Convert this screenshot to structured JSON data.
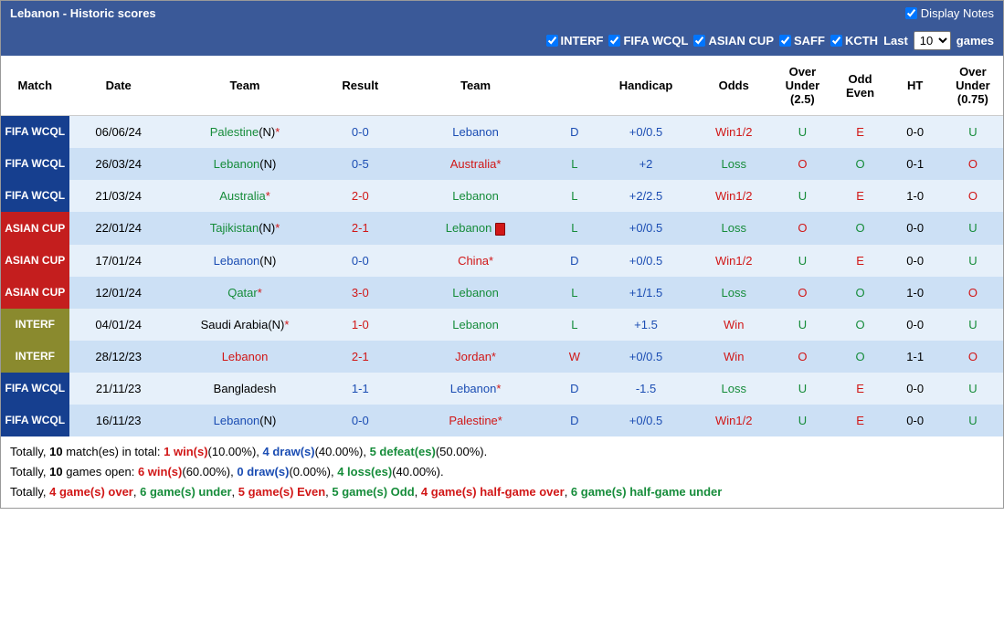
{
  "title": "Lebanon - Historic scores",
  "display_notes_label": "Display Notes",
  "filters": [
    {
      "label": "INTERF",
      "checked": true
    },
    {
      "label": "FIFA WCQL",
      "checked": true
    },
    {
      "label": "ASIAN CUP",
      "checked": true
    },
    {
      "label": "SAFF",
      "checked": true
    },
    {
      "label": "KCTH",
      "checked": true
    }
  ],
  "last_label_pre": "Last",
  "last_select": "10",
  "last_label_post": "games",
  "columns": [
    "Match",
    "Date",
    "Team",
    "Result",
    "Team",
    "",
    "Handicap",
    "Odds",
    "Over Under (2.5)",
    "Odd Even",
    "HT",
    "Over Under (0.75)"
  ],
  "rows": [
    {
      "badge": "FIFA WCQL",
      "badge_cls": "badge-fifa",
      "date": "06/06/24",
      "t1": "Palestine",
      "t1_sfx": "(N)*",
      "t1_cls": "c-green",
      "res": "0-0",
      "res_cls": "c-blue",
      "t2": "Lebanon",
      "t2_sfx": "",
      "t2_cls": "c-blue",
      "t2_card": false,
      "dl": "D",
      "dl_cls": "c-blue",
      "hcap": "+0/0.5",
      "hcap_cls": "c-blue",
      "odds": "Win1/2",
      "odds_cls": "c-red",
      "ou": "U",
      "ou_cls": "c-green",
      "oe": "E",
      "oe_cls": "c-red",
      "ht": "0-0",
      "ou2": "U",
      "ou2_cls": "c-green",
      "row_cls": "row-light"
    },
    {
      "badge": "FIFA WCQL",
      "badge_cls": "badge-fifa",
      "date": "26/03/24",
      "t1": "Lebanon",
      "t1_sfx": "(N)",
      "t1_cls": "c-green",
      "res": "0-5",
      "res_cls": "c-blue",
      "t2": "Australia",
      "t2_sfx": "*",
      "t2_cls": "c-red",
      "t2_card": false,
      "dl": "L",
      "dl_cls": "c-green",
      "hcap": "+2",
      "hcap_cls": "c-blue",
      "odds": "Loss",
      "odds_cls": "c-green",
      "ou": "O",
      "ou_cls": "c-red",
      "oe": "O",
      "oe_cls": "c-green",
      "ht": "0-1",
      "ou2": "O",
      "ou2_cls": "c-red",
      "row_cls": "row-dark"
    },
    {
      "badge": "FIFA WCQL",
      "badge_cls": "badge-fifa",
      "date": "21/03/24",
      "t1": "Australia",
      "t1_sfx": "*",
      "t1_cls": "c-green",
      "res": "2-0",
      "res_cls": "c-red",
      "t2": "Lebanon",
      "t2_sfx": "",
      "t2_cls": "c-green",
      "t2_card": false,
      "dl": "L",
      "dl_cls": "c-green",
      "hcap": "+2/2.5",
      "hcap_cls": "c-blue",
      "odds": "Win1/2",
      "odds_cls": "c-red",
      "ou": "U",
      "ou_cls": "c-green",
      "oe": "E",
      "oe_cls": "c-red",
      "ht": "1-0",
      "ou2": "O",
      "ou2_cls": "c-red",
      "row_cls": "row-light"
    },
    {
      "badge": "ASIAN CUP",
      "badge_cls": "badge-asian",
      "date": "22/01/24",
      "t1": "Tajikistan",
      "t1_sfx": "(N)*",
      "t1_cls": "c-green",
      "res": "2-1",
      "res_cls": "c-red",
      "t2": "Lebanon",
      "t2_sfx": "",
      "t2_cls": "c-green",
      "t2_card": true,
      "dl": "L",
      "dl_cls": "c-green",
      "hcap": "+0/0.5",
      "hcap_cls": "c-blue",
      "odds": "Loss",
      "odds_cls": "c-green",
      "ou": "O",
      "ou_cls": "c-red",
      "oe": "O",
      "oe_cls": "c-green",
      "ht": "0-0",
      "ou2": "U",
      "ou2_cls": "c-green",
      "row_cls": "row-dark"
    },
    {
      "badge": "ASIAN CUP",
      "badge_cls": "badge-asian",
      "date": "17/01/24",
      "t1": "Lebanon",
      "t1_sfx": "(N)",
      "t1_cls": "c-blue",
      "res": "0-0",
      "res_cls": "c-blue",
      "t2": "China",
      "t2_sfx": "*",
      "t2_cls": "c-red",
      "t2_card": false,
      "dl": "D",
      "dl_cls": "c-blue",
      "hcap": "+0/0.5",
      "hcap_cls": "c-blue",
      "odds": "Win1/2",
      "odds_cls": "c-red",
      "ou": "U",
      "ou_cls": "c-green",
      "oe": "E",
      "oe_cls": "c-red",
      "ht": "0-0",
      "ou2": "U",
      "ou2_cls": "c-green",
      "row_cls": "row-light"
    },
    {
      "badge": "ASIAN CUP",
      "badge_cls": "badge-asian",
      "date": "12/01/24",
      "t1": "Qatar",
      "t1_sfx": "*",
      "t1_cls": "c-green",
      "res": "3-0",
      "res_cls": "c-red",
      "t2": "Lebanon",
      "t2_sfx": "",
      "t2_cls": "c-green",
      "t2_card": false,
      "dl": "L",
      "dl_cls": "c-green",
      "hcap": "+1/1.5",
      "hcap_cls": "c-blue",
      "odds": "Loss",
      "odds_cls": "c-green",
      "ou": "O",
      "ou_cls": "c-red",
      "oe": "O",
      "oe_cls": "c-green",
      "ht": "1-0",
      "ou2": "O",
      "ou2_cls": "c-red",
      "row_cls": "row-dark"
    },
    {
      "badge": "INTERF",
      "badge_cls": "badge-interf",
      "date": "04/01/24",
      "t1": "Saudi Arabia",
      "t1_sfx": "(N)*",
      "t1_cls": "c-black",
      "res": "1-0",
      "res_cls": "c-red",
      "t2": "Lebanon",
      "t2_sfx": "",
      "t2_cls": "c-green",
      "t2_card": false,
      "dl": "L",
      "dl_cls": "c-green",
      "hcap": "+1.5",
      "hcap_cls": "c-blue",
      "odds": "Win",
      "odds_cls": "c-red",
      "ou": "U",
      "ou_cls": "c-green",
      "oe": "O",
      "oe_cls": "c-green",
      "ht": "0-0",
      "ou2": "U",
      "ou2_cls": "c-green",
      "row_cls": "row-light"
    },
    {
      "badge": "INTERF",
      "badge_cls": "badge-interf",
      "date": "28/12/23",
      "t1": "Lebanon",
      "t1_sfx": "",
      "t1_cls": "c-red",
      "res": "2-1",
      "res_cls": "c-red",
      "t2": "Jordan",
      "t2_sfx": "*",
      "t2_cls": "c-red",
      "t2_card": false,
      "dl": "W",
      "dl_cls": "c-red",
      "hcap": "+0/0.5",
      "hcap_cls": "c-blue",
      "odds": "Win",
      "odds_cls": "c-red",
      "ou": "O",
      "ou_cls": "c-red",
      "oe": "O",
      "oe_cls": "c-green",
      "ht": "1-1",
      "ou2": "O",
      "ou2_cls": "c-red",
      "row_cls": "row-dark"
    },
    {
      "badge": "FIFA WCQL",
      "badge_cls": "badge-fifa",
      "date": "21/11/23",
      "t1": "Bangladesh",
      "t1_sfx": "",
      "t1_cls": "c-black",
      "res": "1-1",
      "res_cls": "c-blue",
      "t2": "Lebanon",
      "t2_sfx": "*",
      "t2_cls": "c-blue",
      "t2_card": false,
      "dl": "D",
      "dl_cls": "c-blue",
      "hcap": "-1.5",
      "hcap_cls": "c-blue",
      "odds": "Loss",
      "odds_cls": "c-green",
      "ou": "U",
      "ou_cls": "c-green",
      "oe": "E",
      "oe_cls": "c-red",
      "ht": "0-0",
      "ou2": "U",
      "ou2_cls": "c-green",
      "row_cls": "row-light"
    },
    {
      "badge": "FIFA WCQL",
      "badge_cls": "badge-fifa",
      "date": "16/11/23",
      "t1": "Lebanon",
      "t1_sfx": "(N)",
      "t1_cls": "c-blue",
      "res": "0-0",
      "res_cls": "c-blue",
      "t2": "Palestine",
      "t2_sfx": "*",
      "t2_cls": "c-red",
      "t2_card": false,
      "dl": "D",
      "dl_cls": "c-blue",
      "hcap": "+0/0.5",
      "hcap_cls": "c-blue",
      "odds": "Win1/2",
      "odds_cls": "c-red",
      "ou": "U",
      "ou_cls": "c-green",
      "oe": "E",
      "oe_cls": "c-red",
      "ht": "0-0",
      "ou2": "U",
      "ou2_cls": "c-green",
      "row_cls": "row-dark"
    }
  ],
  "summary": {
    "line1": {
      "pre": "Totally, ",
      "b1": "10",
      "mid1": " match(es) in total: ",
      "w": "1 win(s)",
      "wp": "(10.00%)",
      "sep1": ", ",
      "d": "4 draw(s)",
      "dp": "(40.00%)",
      "sep2": ", ",
      "l": "5 defeat(es)",
      "lp": "(50.00%)",
      "end": "."
    },
    "line2": {
      "pre": "Totally, ",
      "b1": "10",
      "mid1": " games open: ",
      "w": "6 win(s)",
      "wp": "(60.00%)",
      "sep1": ", ",
      "d": "0 draw(s)",
      "dp": "(0.00%)",
      "sep2": ", ",
      "l": "4 loss(es)",
      "lp": "(40.00%)",
      "end": "."
    },
    "line3": {
      "pre": "Totally, ",
      "go": "4 game(s) over",
      "s1": ", ",
      "gu": "6 game(s) under",
      "s2": ", ",
      "ge": "5 game(s) Even",
      "s3": ", ",
      "god": "5 game(s) Odd",
      "s4": ", ",
      "hgo": "4 game(s) half-game over",
      "s5": ", ",
      "hgu": "6 game(s) half-game under"
    }
  }
}
